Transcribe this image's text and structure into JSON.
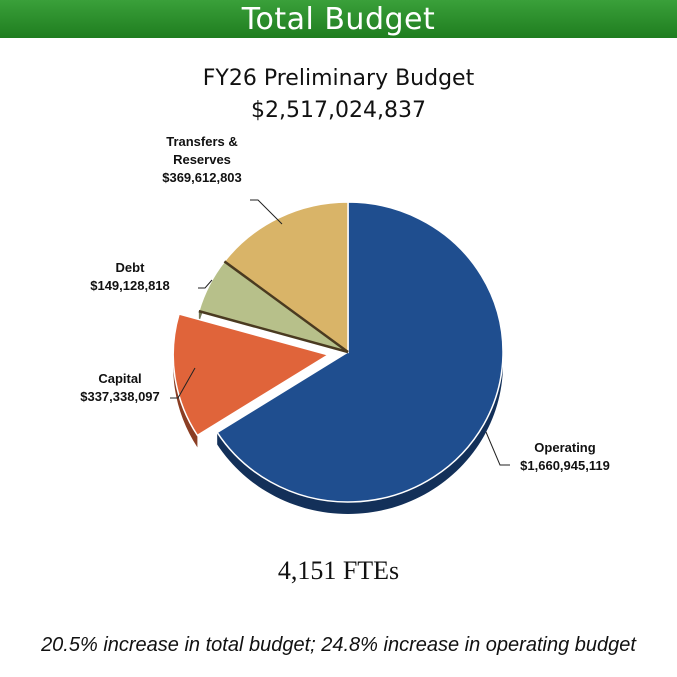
{
  "banner": {
    "title": "Total Budget"
  },
  "chart_data": {
    "type": "pie",
    "title": "FY26 Preliminary Budget",
    "subtitle": "$2,517,024,837",
    "slices": [
      {
        "label": "Operating",
        "value_label": "$1,660,945,119",
        "value": 1660945119,
        "color": "#1f4e8f",
        "exploded": false
      },
      {
        "label": "Capital",
        "value_label": "$337,338,097",
        "value": 337338097,
        "color": "#e0643a",
        "exploded": true
      },
      {
        "label": "Debt",
        "value_label": "$149,128,818",
        "value": 149128818,
        "color": "#b7c08a",
        "exploded": false
      },
      {
        "label": "Transfers & Reserves",
        "label_lines": [
          "Transfers &",
          "Reserves"
        ],
        "value_label": "$369,612,803",
        "value": 369612803,
        "color": "#d9b468",
        "exploded": false
      }
    ]
  },
  "footer": {
    "ftes": "4,151 FTEs",
    "note": "20.5% increase in total budget; 24.8% increase in operating budget"
  }
}
